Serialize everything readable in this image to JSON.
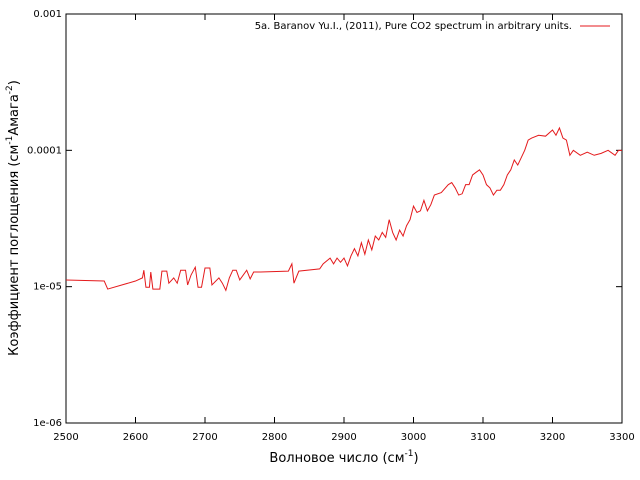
{
  "chart_data": {
    "type": "line",
    "xlabel_parts": [
      "Волновое число (см",
      "-1",
      ")"
    ],
    "ylabel_parts": [
      "Коэффициент поглощения (см",
      "-1",
      "Амага",
      "-2",
      ")"
    ],
    "xlim": [
      2500,
      3300
    ],
    "xticks": [
      2500,
      2600,
      2700,
      2800,
      2900,
      3000,
      3100,
      3200,
      3300
    ],
    "ylim": [
      1e-06,
      0.001
    ],
    "yticks": [
      {
        "value": 0.001,
        "label": "0.001"
      },
      {
        "value": 0.0001,
        "label": "0.0001"
      },
      {
        "value": 1e-05,
        "label": "1e-05"
      },
      {
        "value": 1e-06,
        "label": "1e-06"
      }
    ],
    "log_y": true,
    "legend": "top-right",
    "series": [
      {
        "name": "5a. Baranov Yu.I., (2011), Pure CO2 spectrum in arbitrary units.",
        "color": "#e41a1c",
        "x": [
          2500,
          2555,
          2560,
          2600,
          2610,
          2612,
          2615,
          2620,
          2622,
          2625,
          2635,
          2638,
          2645,
          2648,
          2655,
          2660,
          2665,
          2672,
          2675,
          2680,
          2686,
          2690,
          2695,
          2700,
          2707,
          2710,
          2720,
          2725,
          2730,
          2735,
          2740,
          2745,
          2750,
          2760,
          2765,
          2770,
          2780,
          2820,
          2825,
          2828,
          2835,
          2865,
          2870,
          2880,
          2885,
          2890,
          2895,
          2900,
          2905,
          2910,
          2915,
          2920,
          2925,
          2930,
          2935,
          2940,
          2945,
          2950,
          2955,
          2960,
          2965,
          2970,
          2975,
          2980,
          2985,
          2990,
          2995,
          3000,
          3005,
          3010,
          3015,
          3020,
          3025,
          3030,
          3040,
          3050,
          3055,
          3060,
          3065,
          3070,
          3075,
          3080,
          3085,
          3090,
          3095,
          3100,
          3105,
          3110,
          3115,
          3120,
          3125,
          3130,
          3135,
          3140,
          3145,
          3150,
          3160,
          3165,
          3170,
          3180,
          3190,
          3200,
          3205,
          3210,
          3215,
          3220,
          3225,
          3230,
          3240,
          3250,
          3260,
          3270,
          3280,
          3290,
          3295,
          3300
        ],
        "values": [
          1.12e-05,
          1.1e-05,
          9.6e-06,
          1.1e-05,
          1.16e-05,
          1.32e-05,
          9.9e-06,
          9.9e-06,
          1.28e-05,
          9.6e-06,
          9.6e-06,
          1.3e-05,
          1.3e-05,
          1.06e-05,
          1.16e-05,
          1.06e-05,
          1.32e-05,
          1.32e-05,
          1.03e-05,
          1.22e-05,
          1.39e-05,
          9.9e-06,
          9.9e-06,
          1.37e-05,
          1.37e-05,
          1.03e-05,
          1.16e-05,
          1.06e-05,
          9.4e-06,
          1.16e-05,
          1.32e-05,
          1.32e-05,
          1.12e-05,
          1.32e-05,
          1.14e-05,
          1.28e-05,
          1.28e-05,
          1.3e-05,
          1.47e-05,
          1.06e-05,
          1.3e-05,
          1.35e-05,
          1.47e-05,
          1.62e-05,
          1.47e-05,
          1.62e-05,
          1.51e-05,
          1.62e-05,
          1.42e-05,
          1.68e-05,
          1.9e-05,
          1.68e-05,
          2.1e-05,
          1.73e-05,
          2.2e-05,
          1.86e-05,
          2.35e-05,
          2.2e-05,
          2.5e-05,
          2.3e-05,
          3.1e-05,
          2.5e-05,
          2.2e-05,
          2.6e-05,
          2.35e-05,
          2.8e-05,
          3.1e-05,
          3.9e-05,
          3.5e-05,
          3.6e-05,
          4.3e-05,
          3.6e-05,
          4e-05,
          4.7e-05,
          4.9e-05,
          5.6e-05,
          5.8e-05,
          5.3e-05,
          4.7e-05,
          4.8e-05,
          5.6e-05,
          5.6e-05,
          6.6e-05,
          6.9e-05,
          7.2e-05,
          6.6e-05,
          5.6e-05,
          5.3e-05,
          4.7e-05,
          5.1e-05,
          5.1e-05,
          5.6e-05,
          6.6e-05,
          7.2e-05,
          8.5e-05,
          7.8e-05,
          0.0001,
          0.000119,
          0.000123,
          0.000129,
          0.000127,
          0.000141,
          0.000129,
          0.000146,
          0.000123,
          0.000119,
          9.2e-05,
          0.0001,
          9.2e-05,
          9.7e-05,
          9.2e-05,
          9.5e-05,
          0.0001,
          9.2e-05,
          0.0001,
          0.0001
        ]
      }
    ]
  }
}
